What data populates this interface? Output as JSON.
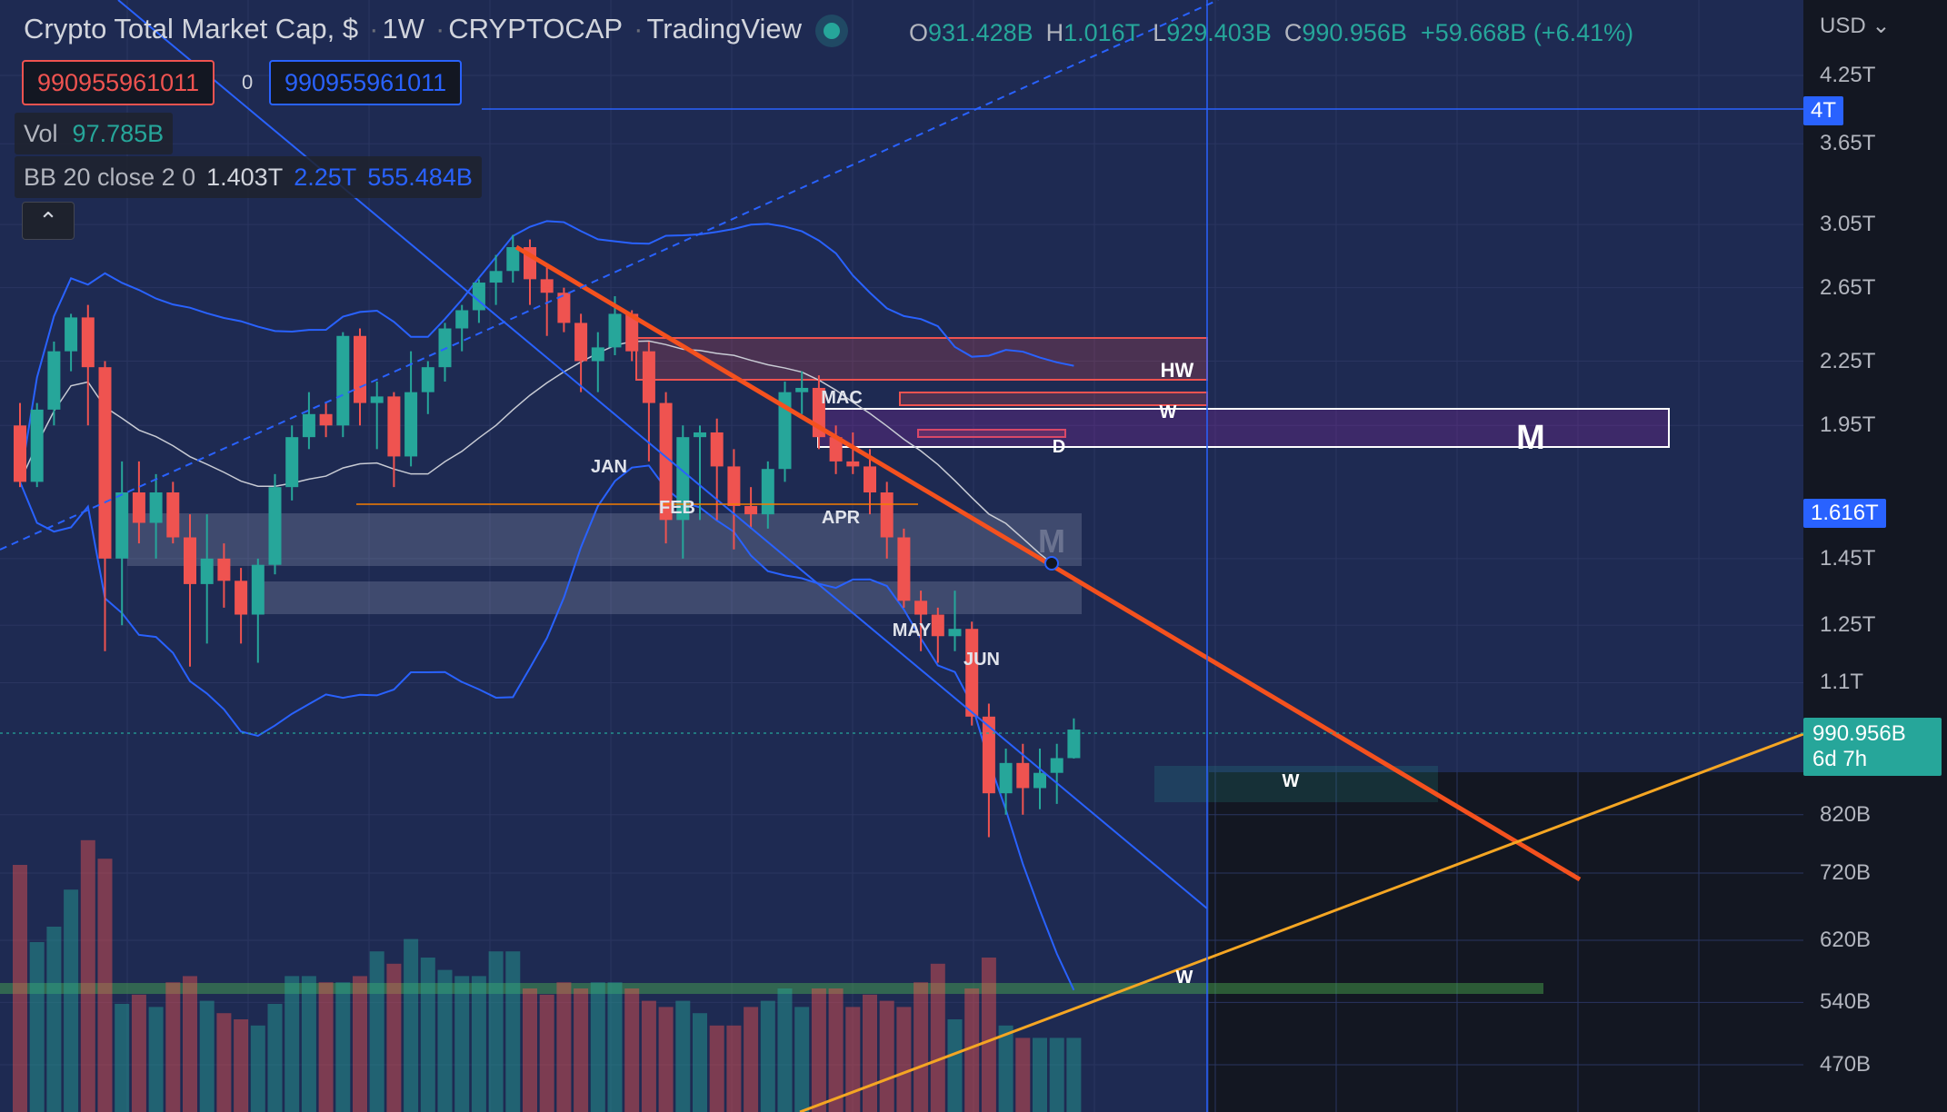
{
  "header": {
    "title": "Crypto Total Market Cap, $",
    "interval": "1W",
    "exchange": "CRYPTOCAP",
    "platform": "TradingView",
    "open_label": "O",
    "open": "931.428B",
    "high_label": "H",
    "high": "1.016T",
    "low_label": "L",
    "low": "929.403B",
    "close_label": "C",
    "close": "990.956B",
    "change": "+59.668B (+6.41%)"
  },
  "trade_box": {
    "sell": "990955961011",
    "spread": "0",
    "buy": "990955961011"
  },
  "indicators": {
    "vol_label": "Vol",
    "vol_value": "97.785B",
    "bb_label": "BB 20 close 2 0",
    "bb_basis": "1.403T",
    "bb_upper": "2.25T",
    "bb_lower": "555.484B"
  },
  "collapse_icon": "chevron-up-icon",
  "price_axis": {
    "currency": "USD",
    "ticks": [
      "4.25T",
      "3.65T",
      "3.05T",
      "2.65T",
      "2.25T",
      "1.95T",
      "1.45T",
      "1.25T",
      "1.1T",
      "820B",
      "720B",
      "620B",
      "540B",
      "470B"
    ],
    "tags": {
      "crosshair": "4T",
      "level": "1.616T",
      "last_price": "990.956B",
      "countdown": "6d 7h"
    }
  },
  "annotations": {
    "months": [
      "JAN",
      "FEB",
      "MAC",
      "APR",
      "MAY",
      "JUN"
    ],
    "zones": [
      "HW",
      "W",
      "D",
      "M",
      "M",
      "W",
      "W"
    ]
  },
  "colors": {
    "up": "#26a69a",
    "down": "#ef5350",
    "bb": "#2962ff",
    "trend": "#f57c00",
    "bg": "#1e2a52"
  },
  "chart_data": {
    "type": "candlestick",
    "title": "Crypto Total Market Cap, $",
    "interval": "1W",
    "yscale": "log",
    "ylim": [
      450000000000,
      4500000000000
    ],
    "candles": [
      [
        1.95,
        2.05,
        1.7,
        1.72
      ],
      [
        1.72,
        2.05,
        1.7,
        2.02
      ],
      [
        2.02,
        2.35,
        1.95,
        2.3
      ],
      [
        2.3,
        2.5,
        2.2,
        2.48
      ],
      [
        2.48,
        2.55,
        1.95,
        2.22
      ],
      [
        2.22,
        2.25,
        1.18,
        1.45
      ],
      [
        1.45,
        1.8,
        1.25,
        1.68
      ],
      [
        1.68,
        1.8,
        1.5,
        1.57
      ],
      [
        1.57,
        1.75,
        1.45,
        1.68
      ],
      [
        1.68,
        1.72,
        1.5,
        1.52
      ],
      [
        1.52,
        1.6,
        1.14,
        1.37
      ],
      [
        1.37,
        1.6,
        1.2,
        1.45
      ],
      [
        1.45,
        1.5,
        1.3,
        1.38
      ],
      [
        1.38,
        1.42,
        1.2,
        1.28
      ],
      [
        1.28,
        1.45,
        1.15,
        1.43
      ],
      [
        1.43,
        1.75,
        1.4,
        1.7
      ],
      [
        1.7,
        1.95,
        1.65,
        1.9
      ],
      [
        1.9,
        2.1,
        1.85,
        2.0
      ],
      [
        2.0,
        2.05,
        1.9,
        1.95
      ],
      [
        1.95,
        2.4,
        1.9,
        2.38
      ],
      [
        2.38,
        2.42,
        1.95,
        2.05
      ],
      [
        2.05,
        2.15,
        1.85,
        2.08
      ],
      [
        2.08,
        2.1,
        1.7,
        1.82
      ],
      [
        1.82,
        2.3,
        1.78,
        2.1
      ],
      [
        2.1,
        2.25,
        2.0,
        2.22
      ],
      [
        2.22,
        2.45,
        2.15,
        2.42
      ],
      [
        2.42,
        2.55,
        2.3,
        2.52
      ],
      [
        2.52,
        2.7,
        2.45,
        2.68
      ],
      [
        2.68,
        2.85,
        2.55,
        2.75
      ],
      [
        2.75,
        2.98,
        2.68,
        2.9
      ],
      [
        2.9,
        2.95,
        2.55,
        2.7
      ],
      [
        2.7,
        2.78,
        2.38,
        2.62
      ],
      [
        2.62,
        2.65,
        2.4,
        2.45
      ],
      [
        2.45,
        2.5,
        2.1,
        2.25
      ],
      [
        2.25,
        2.4,
        2.1,
        2.32
      ],
      [
        2.32,
        2.6,
        2.28,
        2.5
      ],
      [
        2.5,
        2.52,
        2.25,
        2.3
      ],
      [
        2.3,
        2.35,
        1.8,
        2.05
      ],
      [
        2.05,
        2.1,
        1.5,
        1.58
      ],
      [
        1.58,
        1.95,
        1.45,
        1.9
      ],
      [
        1.9,
        1.95,
        1.58,
        1.92
      ],
      [
        1.92,
        1.98,
        1.58,
        1.78
      ],
      [
        1.78,
        1.85,
        1.48,
        1.63
      ],
      [
        1.63,
        1.7,
        1.55,
        1.6
      ],
      [
        1.6,
        1.8,
        1.55,
        1.77
      ],
      [
        1.77,
        2.15,
        1.72,
        2.1
      ],
      [
        2.1,
        2.2,
        2.0,
        2.12
      ],
      [
        2.12,
        2.18,
        1.85,
        1.9
      ],
      [
        1.9,
        1.95,
        1.75,
        1.8
      ],
      [
        1.8,
        1.92,
        1.75,
        1.78
      ],
      [
        1.78,
        1.85,
        1.6,
        1.68
      ],
      [
        1.68,
        1.72,
        1.45,
        1.52
      ],
      [
        1.52,
        1.55,
        1.3,
        1.32
      ],
      [
        1.32,
        1.35,
        1.18,
        1.28
      ],
      [
        1.28,
        1.3,
        1.15,
        1.22
      ],
      [
        1.22,
        1.35,
        1.18,
        1.24
      ],
      [
        1.24,
        1.26,
        1.0,
        1.02
      ],
      [
        1.02,
        1.05,
        0.78,
        0.86
      ],
      [
        0.86,
        0.95,
        0.82,
        0.92
      ],
      [
        0.92,
        0.96,
        0.82,
        0.87
      ],
      [
        0.87,
        0.95,
        0.83,
        0.9
      ],
      [
        0.9,
        0.96,
        0.84,
        0.93
      ],
      [
        0.93,
        1.016,
        0.929,
        0.991
      ]
    ],
    "volume": [
      80,
      55,
      60,
      72,
      88,
      82,
      35,
      38,
      34,
      42,
      44,
      36,
      32,
      30,
      28,
      35,
      44,
      44,
      42,
      42,
      44,
      52,
      48,
      56,
      50,
      46,
      44,
      44,
      52,
      52,
      40,
      38,
      42,
      40,
      42,
      42,
      40,
      36,
      34,
      36,
      32,
      28,
      28,
      34,
      36,
      40,
      34,
      40,
      40,
      34,
      38,
      36,
      34,
      42,
      48,
      30,
      40,
      50,
      28,
      24,
      24,
      24,
      24
    ]
  }
}
